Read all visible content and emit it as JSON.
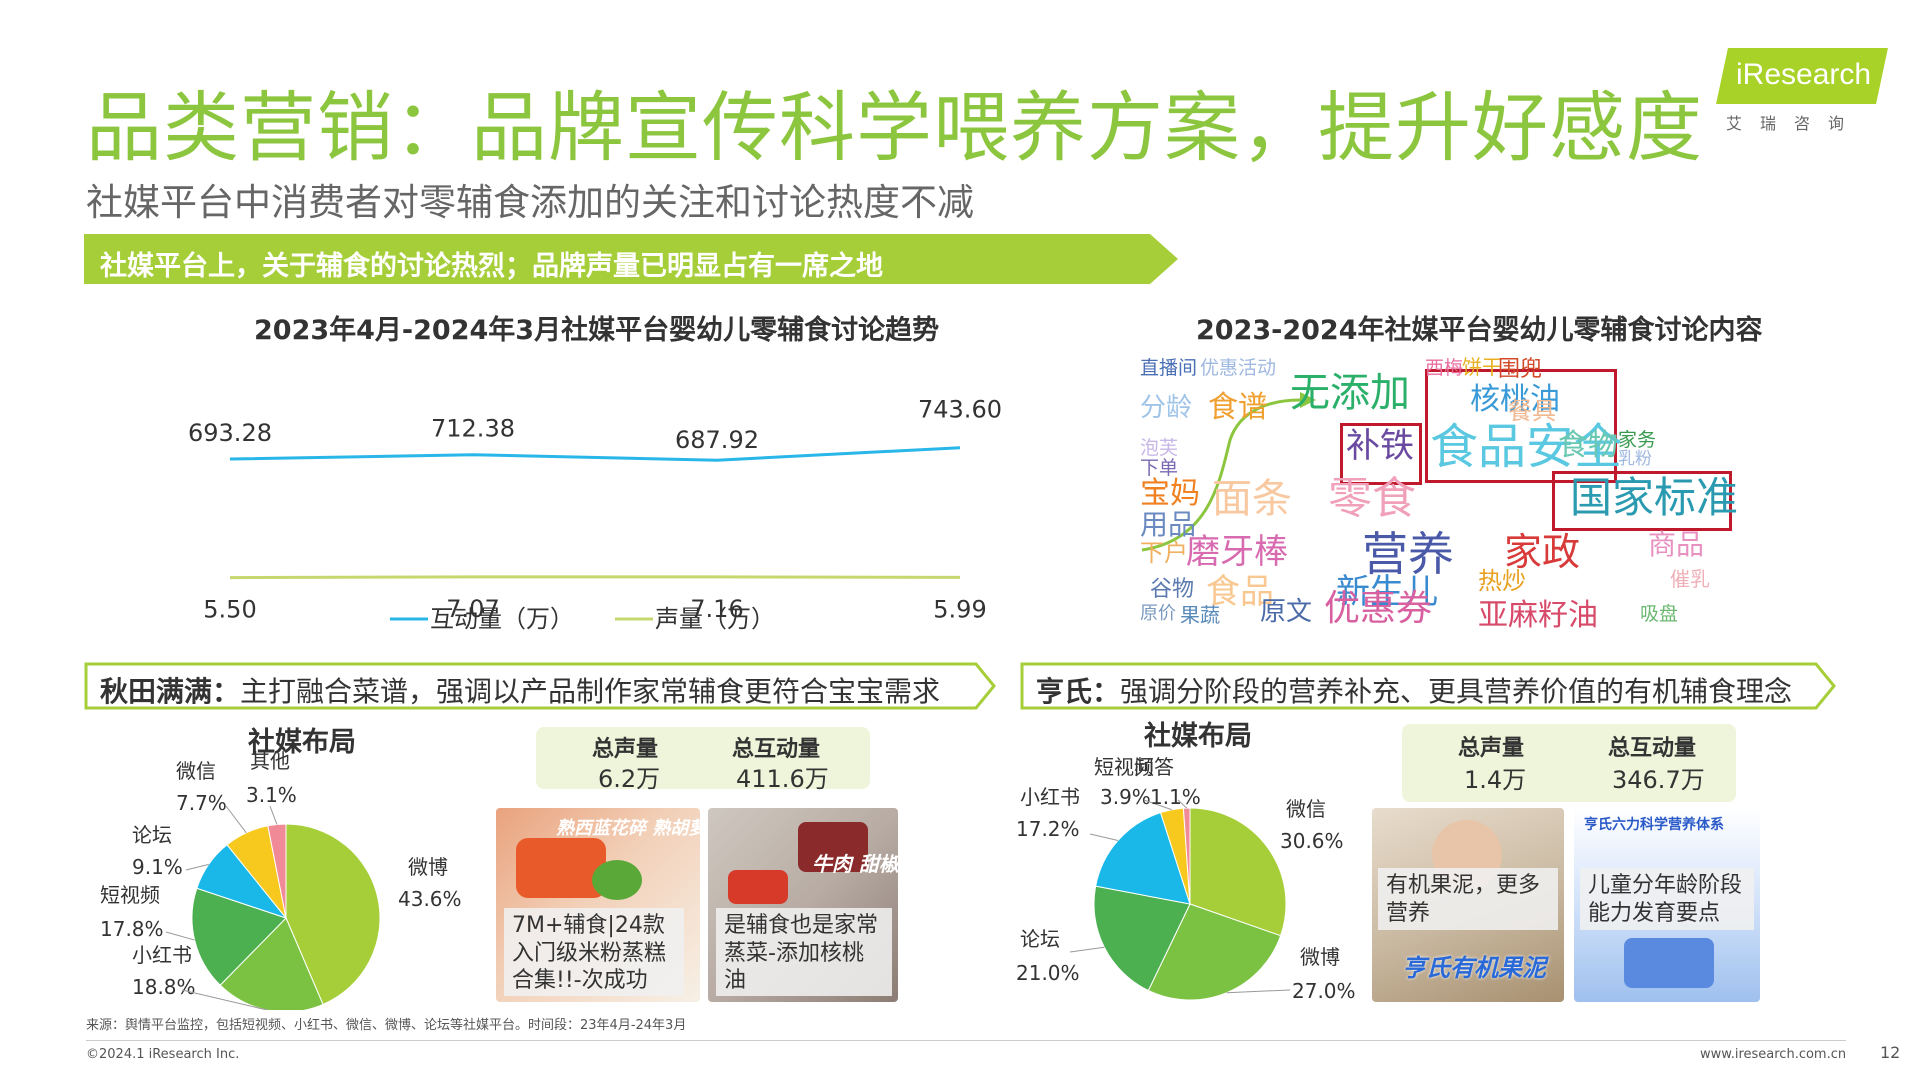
{
  "header": {
    "title": "品类营销：品牌宣传科学喂养方案，提升好感度",
    "subtitle": "社媒平台中消费者对零辅食添加的关注和讨论热度不减",
    "banner": "社媒平台上，关于辅食的讨论热烈；品牌声量已明显占有一席之地"
  },
  "logo": {
    "word": "iResearch",
    "cn": "艾瑞咨询",
    "accent": "#a8d227"
  },
  "trend": {
    "title": "2023年4月-2024年3月社媒平台婴幼儿零辅食讨论趋势",
    "chart_data": {
      "type": "line",
      "categories": [
        "",
        "",
        "",
        ""
      ],
      "series": [
        {
          "name": "互动量（万）",
          "values": [
            693.28,
            712.38,
            687.92,
            743.6
          ],
          "labels": [
            "693.28",
            "712.38",
            "687.92",
            "743.60"
          ],
          "color": "#29b6e8"
        },
        {
          "name": "声量（万）",
          "values": [
            5.5,
            7.07,
            7.16,
            5.99
          ],
          "labels": [
            "5.50",
            "7.07",
            "7.16",
            "5.99"
          ],
          "color": "#c5d86d"
        }
      ],
      "legend": "bottom",
      "grid": false
    }
  },
  "cloud": {
    "title": "2023-2024年社媒平台婴幼儿零辅食讨论内容",
    "words": [
      {
        "text": "直播间",
        "color": "#4a6fb5"
      },
      {
        "text": "优惠活动",
        "color": "#9fb8e0"
      },
      {
        "text": "西梅",
        "color": "#e86fa0"
      },
      {
        "text": "饼干",
        "color": "#e8b020"
      },
      {
        "text": "围兜",
        "color": "#d24a2a"
      },
      {
        "text": "分龄",
        "color": "#9fc4e8"
      },
      {
        "text": "食谱",
        "color": "#f0a030"
      },
      {
        "text": "无添加",
        "color": "#2bb06a"
      },
      {
        "text": "核桃油",
        "color": "#3a9ad8"
      },
      {
        "text": "餐具",
        "color": "#f0b890"
      },
      {
        "text": "泡芙",
        "color": "#c8b8e8"
      },
      {
        "text": "下单",
        "color": "#7a6ab0"
      },
      {
        "text": "补铁",
        "color": "#6a4aa0"
      },
      {
        "text": "食品安全",
        "color": "#5ac8e0"
      },
      {
        "text": "食物",
        "color": "#6ac8b0"
      },
      {
        "text": "家务",
        "color": "#3a9a50"
      },
      {
        "text": "乳粉",
        "color": "#9fb8e0"
      },
      {
        "text": "宝妈",
        "color": "#f08020"
      },
      {
        "text": "面条",
        "color": "#f8c8a0"
      },
      {
        "text": "零食",
        "color": "#f0a0b8"
      },
      {
        "text": "国家标准",
        "color": "#2a9ab0"
      },
      {
        "text": "用品",
        "color": "#6a8ac0"
      },
      {
        "text": "下户",
        "color": "#f0b060"
      },
      {
        "text": "磨牙棒",
        "color": "#d86ab0"
      },
      {
        "text": "营养",
        "color": "#4a5aa8"
      },
      {
        "text": "家政",
        "color": "#d83a3a"
      },
      {
        "text": "商品",
        "color": "#e890c0"
      },
      {
        "text": "谷物",
        "color": "#5a7ab0"
      },
      {
        "text": "食品",
        "color": "#f8c890"
      },
      {
        "text": "新生儿",
        "color": "#3a8ad0"
      },
      {
        "text": "热炒",
        "color": "#e8a020"
      },
      {
        "text": "原价",
        "color": "#7a9ac0"
      },
      {
        "text": "果蔬",
        "color": "#5a8ab8"
      },
      {
        "text": "原文",
        "color": "#4a6aa8"
      },
      {
        "text": "优惠券",
        "color": "#d860a0"
      },
      {
        "text": "催乳",
        "color": "#f0b0b8"
      },
      {
        "text": "亚麻籽油",
        "color": "#d84a6a"
      },
      {
        "text": "吸盘",
        "color": "#6ab870"
      }
    ]
  },
  "left_brand": {
    "name": "秋田满满：",
    "slogan": "主打融合菜谱，强调以产品制作家常辅食更符合宝宝需求",
    "pie_title": "社媒布局",
    "pie": {
      "chart_data": {
        "type": "pie",
        "slices": [
          {
            "name": "微博",
            "value": 43.6,
            "label": "43.6%",
            "color": "#a6ce39"
          },
          {
            "name": "小红书",
            "value": 18.8,
            "label": "18.8%",
            "color": "#7cc242"
          },
          {
            "name": "短视频",
            "value": 17.8,
            "label": "17.8%",
            "color": "#4caf50"
          },
          {
            "name": "论坛",
            "value": 9.1,
            "label": "9.1%",
            "color": "#1ab8e8"
          },
          {
            "name": "微信",
            "value": 7.7,
            "label": "7.7%",
            "color": "#f7c81e"
          },
          {
            "name": "其他",
            "value": 3.1,
            "label": "3.1%",
            "color": "#f08a96"
          }
        ]
      }
    },
    "stats": [
      {
        "label": "总声量",
        "value": "6.2万"
      },
      {
        "label": "总互动量",
        "value": "411.6万"
      }
    ],
    "cards": [
      {
        "caption": "7M+辅食|24款入门级米粉蒸糕合集!!-次成功",
        "tag": "熟西蓝花碎 熟胡萝卜碎"
      },
      {
        "caption": "是辅食也是家常蒸菜-添加核桃油",
        "tag": "牛肉 甜椒"
      }
    ]
  },
  "right_brand": {
    "name": "亨氏：",
    "slogan": "强调分阶段的营养补充、更具营养价值的有机辅食理念",
    "pie_title": "社媒布局",
    "pie": {
      "chart_data": {
        "type": "pie",
        "slices": [
          {
            "name": "微信",
            "value": 30.6,
            "label": "30.6%",
            "color": "#a6ce39"
          },
          {
            "name": "微博",
            "value": 27.0,
            "label": "27.0%",
            "color": "#7cc242"
          },
          {
            "name": "论坛",
            "value": 21.0,
            "label": "21.0%",
            "color": "#4caf50"
          },
          {
            "name": "小红书",
            "value": 17.2,
            "label": "17.2%",
            "color": "#1ab8e8"
          },
          {
            "name": "短视频",
            "value": 3.9,
            "label": "3.9%",
            "color": "#f7c81e"
          },
          {
            "name": "问答",
            "value": 1.1,
            "label": "1.1%",
            "color": "#f08a96"
          }
        ]
      }
    },
    "stats": [
      {
        "label": "总声量",
        "value": "1.4万"
      },
      {
        "label": "总互动量",
        "value": "346.7万"
      }
    ],
    "cards": [
      {
        "caption": "有机果泥，更多营养",
        "tag": "亨氏有机果泥"
      },
      {
        "caption": "儿童分年龄阶段能力发育要点",
        "tag": "亨氏六力科学营养体系"
      }
    ]
  },
  "footer": {
    "source": "来源：舆情平台监控，包括短视频、小红书、微信、微博、论坛等社媒平台。时间段：23年4月-24年3月",
    "copyright": "©2024.1 iResearch Inc.",
    "website": "www.iresearch.com.cn",
    "page": "12"
  }
}
